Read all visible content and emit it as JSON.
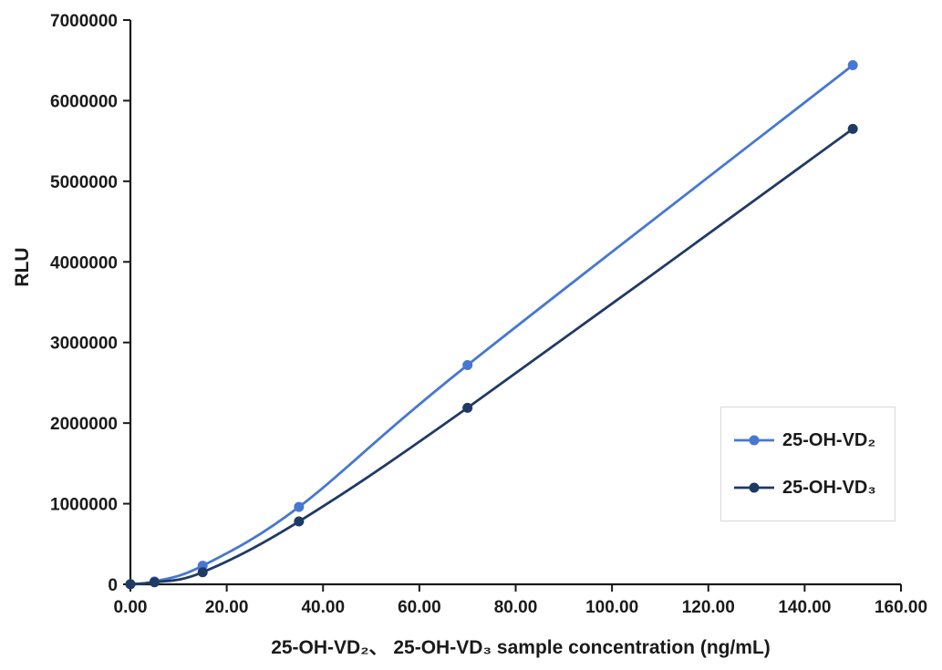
{
  "chart_data": {
    "type": "line",
    "title": "",
    "xlabel": "25-OH-VD₂、 25-OH-VD₃ sample concentration (ng/mL)",
    "ylabel": "RLU",
    "xlim": [
      0,
      160
    ],
    "ylim": [
      0,
      7000000
    ],
    "x_ticks": [
      0,
      20,
      40,
      60,
      80,
      100,
      120,
      140,
      160
    ],
    "x_tick_labels": [
      "0.00",
      "20.00",
      "40.00",
      "60.00",
      "80.00",
      "100.00",
      "120.00",
      "140.00",
      "160.00"
    ],
    "y_ticks": [
      0,
      1000000,
      2000000,
      3000000,
      4000000,
      5000000,
      6000000,
      7000000
    ],
    "y_tick_labels": [
      "0",
      "1000000",
      "2000000",
      "3000000",
      "4000000",
      "5000000",
      "6000000",
      "7000000"
    ],
    "x": [
      0,
      5,
      15,
      35,
      70,
      150
    ],
    "series": [
      {
        "name": "25-OH-VD₂",
        "color": "#4677D2",
        "values": [
          2000,
          35000,
          230000,
          960000,
          2720000,
          6440000
        ]
      },
      {
        "name": "25-OH-VD₃",
        "color": "#203A66",
        "values": [
          1500,
          25000,
          150000,
          780000,
          2190000,
          5650000
        ]
      }
    ],
    "grid": false,
    "legend_position": "right-middle",
    "line_style": "smooth",
    "marker": "circle",
    "axis_color": "#1a1a1a",
    "legend_border_color": "#d9d9d9",
    "background": "#ffffff"
  }
}
